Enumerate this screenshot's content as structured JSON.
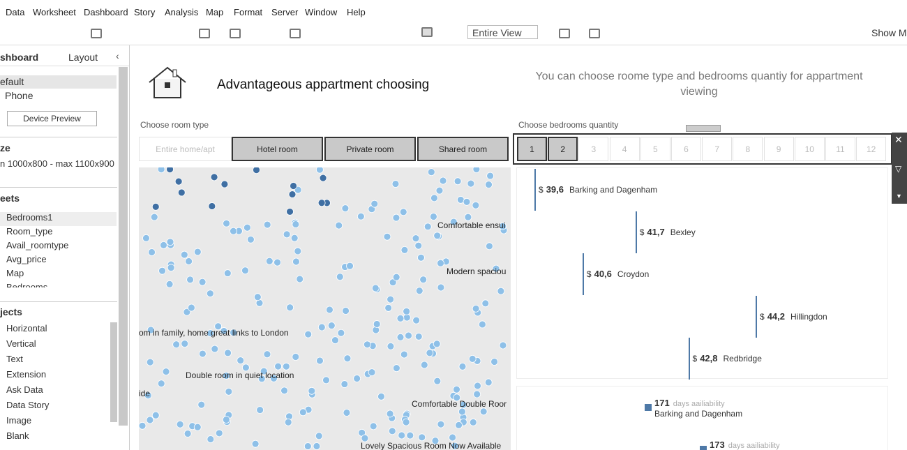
{
  "menu": [
    "Data",
    "Worksheet",
    "Dashboard",
    "Story",
    "Analysis",
    "Map",
    "Format",
    "Server",
    "Window",
    "Help"
  ],
  "toolbar": {
    "view": "Entire View",
    "show_me": "Show Me"
  },
  "left_panel": {
    "tabs": [
      "shboard",
      "Layout"
    ],
    "devices": [
      "efault",
      "Phone"
    ],
    "device_preview": "Device Preview",
    "size_heading": "ze",
    "size_value": "n 1000x800 - max 1100x900",
    "sheets_heading": "eets",
    "sheets": [
      "Bedrooms1",
      "Room_type",
      "Avail_roomtype",
      "Avg_price",
      "Map",
      "Bedrooms"
    ],
    "objects_heading": "jects",
    "objects": [
      "Horizontal",
      "Vertical",
      "Text",
      "Extension",
      "Ask Data",
      "Data Story",
      "Image",
      "Blank"
    ]
  },
  "dashboard": {
    "title": "Advantageous appartment choosing",
    "note": "You can choose roome type and bedrooms quantiy for appartment viewing",
    "room_filter": {
      "label": "Choose room type",
      "options": [
        {
          "label": "Entire home/apt",
          "selected": false
        },
        {
          "label": "Hotel room",
          "selected": true
        },
        {
          "label": "Private room",
          "selected": true
        },
        {
          "label": "Shared room",
          "selected": true
        }
      ]
    },
    "bedroom_filter": {
      "label": "Choose bedrooms quantity",
      "options": [
        {
          "label": "1",
          "selected": true
        },
        {
          "label": "2",
          "selected": true
        },
        {
          "label": "3",
          "selected": false
        },
        {
          "label": "4",
          "selected": false
        },
        {
          "label": "5",
          "selected": false
        },
        {
          "label": "6",
          "selected": false
        },
        {
          "label": "7",
          "selected": false
        },
        {
          "label": "8",
          "selected": false
        },
        {
          "label": "9",
          "selected": false
        },
        {
          "label": "10",
          "selected": false
        },
        {
          "label": "11",
          "selected": false
        },
        {
          "label": "12",
          "selected": false
        }
      ]
    },
    "map_labels": [
      "Comfortable ensui",
      "Modern spaciou",
      "om in  family, home great links to London",
      "Double room in quiet location",
      "ide",
      "Comfortable Double Roor",
      "Lovely Spacious Room Now Available"
    ],
    "price_chart": {
      "currency": "$",
      "rows": [
        {
          "value": 39.6,
          "label": "39,6",
          "name": "Barking and Dagenham"
        },
        {
          "value": 41.7,
          "label": "41,7",
          "name": "Bexley"
        },
        {
          "value": 40.6,
          "label": "40,6",
          "name": "Croydon"
        },
        {
          "value": 44.2,
          "label": "44,2",
          "name": "Hillingdon"
        },
        {
          "value": 42.8,
          "label": "42,8",
          "name": "Redbridge"
        }
      ]
    },
    "availability_chart": {
      "unit": "days aailiability",
      "rows": [
        {
          "value": 171,
          "name": "Barking and Dagenham"
        },
        {
          "value": 173
        }
      ]
    }
  }
}
